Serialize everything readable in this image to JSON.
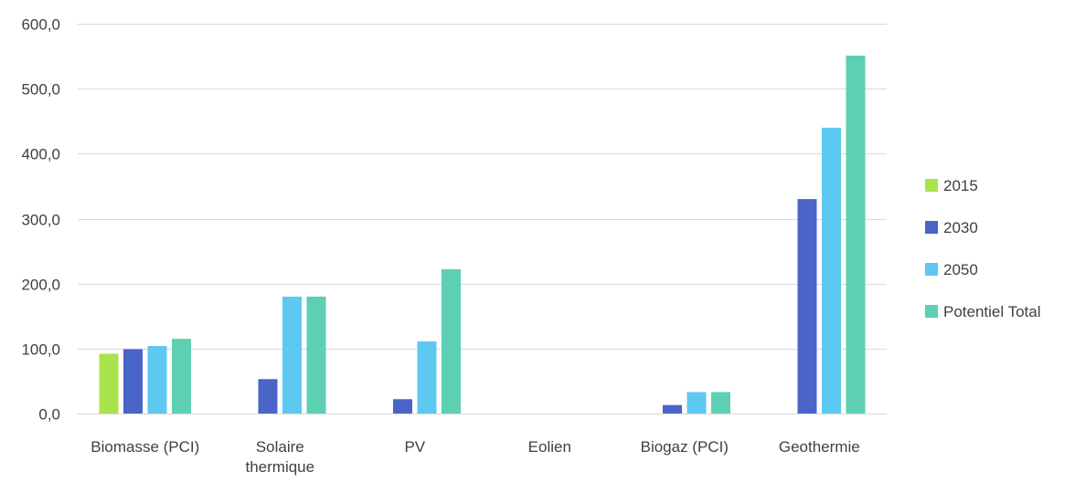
{
  "chart_data": {
    "type": "bar",
    "categories": [
      [
        "Biomasse (PCI)"
      ],
      [
        "Solaire",
        "thermique"
      ],
      [
        "PV"
      ],
      [
        "Eolien"
      ],
      [
        "Biogaz (PCI)"
      ],
      [
        "Geothermie"
      ]
    ],
    "series": [
      {
        "name": "2015",
        "color": "#a9e34b",
        "values": [
          92,
          0,
          0,
          0,
          0,
          0
        ]
      },
      {
        "name": "2030",
        "color": "#4a64c8",
        "values": [
          99,
          53,
          22,
          0,
          13,
          330
        ]
      },
      {
        "name": "2050",
        "color": "#5dc8f0",
        "values": [
          104,
          180,
          111,
          0,
          33,
          440
        ]
      },
      {
        "name": "Potentiel Total",
        "color": "#5dcfb3",
        "values": [
          115,
          180,
          222,
          0,
          33,
          551
        ]
      }
    ],
    "ylim": [
      0,
      600
    ],
    "yticks": [
      "0,0",
      "100,0",
      "200,0",
      "300,0",
      "400,0",
      "500,0",
      "600,0"
    ],
    "ytick_values": [
      0,
      100,
      200,
      300,
      400,
      500,
      600
    ],
    "grid": true,
    "legend_position": "right"
  }
}
